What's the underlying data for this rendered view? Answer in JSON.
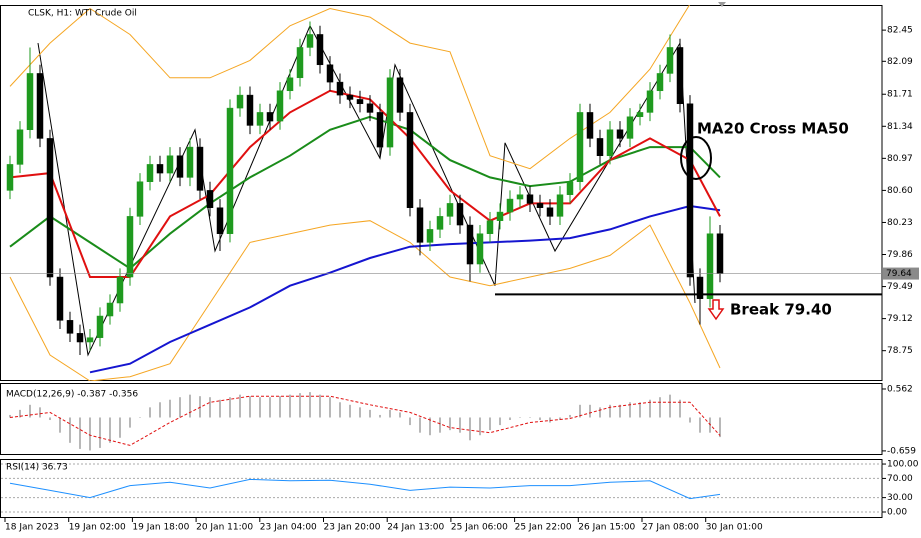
{
  "chart_data": [
    {
      "type": "candlestick",
      "title": "CLSK, H1: WTI Crude Oil",
      "x_labels": [
        "18 Jan 2023",
        "19 Jan 02:00",
        "19 Jan 18:00",
        "20 Jan 11:00",
        "23 Jan 04:00",
        "23 Jan 20:00",
        "24 Jan 13:00",
        "25 Jan 06:00",
        "25 Jan 22:00",
        "26 Jan 15:00",
        "27 Jan 08:00",
        "30 Jan 01:00"
      ],
      "open": [
        80.6,
        80.9,
        81.3,
        81.95,
        81.2,
        79.6,
        79.1,
        78.95,
        78.85,
        78.9,
        79.15,
        79.3,
        79.6,
        80.3,
        80.7,
        80.9,
        80.8,
        81.0,
        80.75,
        81.1,
        80.6,
        80.4,
        80.1,
        81.55,
        81.7,
        81.35,
        81.5,
        81.4,
        81.75,
        81.9,
        82.25,
        82.4,
        82.05,
        81.85,
        81.7,
        81.65,
        81.6,
        81.5,
        81.1,
        81.9,
        81.5,
        80.4,
        80.0,
        80.15,
        80.3,
        80.45,
        80.2,
        79.75,
        80.1,
        80.25,
        80.35,
        80.5,
        80.55,
        80.45,
        80.4,
        80.3,
        80.55,
        80.7,
        81.5,
        81.2,
        81.0,
        81.3,
        81.2,
        81.45,
        81.5,
        81.75,
        81.95,
        82.25,
        81.6,
        79.6,
        79.35,
        80.1
      ],
      "high": [
        81.0,
        81.4,
        82.25,
        82.05,
        81.3,
        79.7,
        79.2,
        79.05,
        79.0,
        79.25,
        79.4,
        79.7,
        80.4,
        80.8,
        81.0,
        81.0,
        81.1,
        81.1,
        81.2,
        81.2,
        80.7,
        80.5,
        81.65,
        81.8,
        81.8,
        81.6,
        81.6,
        81.85,
        82.0,
        82.35,
        82.55,
        82.5,
        82.15,
        81.95,
        81.8,
        81.75,
        81.7,
        81.6,
        82.0,
        82.0,
        81.6,
        80.5,
        80.25,
        80.4,
        80.55,
        80.55,
        80.3,
        80.2,
        80.35,
        80.45,
        80.6,
        80.65,
        80.65,
        80.55,
        80.5,
        80.65,
        80.8,
        81.6,
        81.6,
        81.3,
        81.4,
        81.4,
        81.55,
        81.6,
        81.85,
        82.05,
        82.4,
        82.35,
        81.7,
        79.7,
        80.3,
        80.2
      ],
      "low": [
        80.5,
        80.8,
        81.2,
        81.1,
        79.5,
        79.0,
        78.85,
        78.7,
        78.75,
        78.8,
        79.05,
        79.2,
        79.5,
        80.2,
        80.6,
        80.7,
        80.7,
        80.65,
        80.65,
        80.5,
        80.3,
        79.9,
        80.0,
        81.45,
        81.25,
        81.25,
        81.3,
        81.3,
        81.65,
        81.8,
        82.15,
        81.95,
        81.75,
        81.6,
        81.55,
        81.5,
        81.4,
        80.97,
        81.0,
        81.4,
        80.3,
        79.85,
        79.9,
        80.05,
        80.2,
        80.1,
        79.55,
        79.65,
        80.0,
        80.15,
        80.25,
        80.4,
        80.35,
        80.3,
        80.2,
        80.2,
        80.45,
        80.6,
        81.1,
        80.9,
        80.9,
        81.1,
        81.1,
        81.35,
        81.4,
        81.65,
        81.85,
        81.5,
        79.5,
        79.05,
        79.25,
        79.54
      ],
      "close": [
        80.9,
        81.3,
        81.95,
        81.2,
        79.6,
        79.1,
        78.95,
        78.85,
        78.9,
        79.15,
        79.3,
        79.6,
        80.3,
        80.7,
        80.9,
        80.8,
        81.0,
        80.75,
        81.1,
        80.6,
        80.4,
        80.1,
        81.55,
        81.7,
        81.35,
        81.5,
        81.4,
        81.75,
        81.9,
        82.25,
        82.4,
        82.05,
        81.85,
        81.7,
        81.65,
        81.6,
        81.5,
        81.1,
        81.9,
        81.5,
        80.4,
        80.0,
        80.15,
        80.3,
        80.45,
        80.2,
        79.75,
        80.1,
        80.25,
        80.35,
        80.5,
        80.55,
        80.45,
        80.4,
        80.3,
        80.55,
        80.7,
        81.5,
        81.2,
        81.0,
        81.3,
        81.2,
        81.45,
        81.5,
        81.75,
        81.95,
        82.25,
        81.6,
        79.6,
        79.35,
        80.1,
        79.64
      ],
      "up_color": "#1f9a1f",
      "down_color": "#000000",
      "series": [
        {
          "color": "#000000",
          "x": [
            2.8,
            7.8,
            18.5,
            20.5,
            30,
            37,
            38.5,
            48.5,
            49.5,
            54.5,
            67,
            68.5
          ],
          "values": [
            82.3,
            78.7,
            81.3,
            79.9,
            82.5,
            80.97,
            82.05,
            79.5,
            81.15,
            79.9,
            82.3,
            79.3
          ]
        },
        {
          "color": "#f5a623",
          "x": [
            0,
            4,
            8,
            12,
            16,
            20,
            24,
            28,
            32,
            36,
            40,
            44,
            48,
            52,
            56,
            60,
            64,
            68,
            71
          ],
          "values": [
            81.8,
            82.3,
            82.7,
            82.4,
            81.9,
            81.9,
            82.1,
            82.5,
            82.7,
            82.6,
            82.3,
            82.2,
            81.0,
            80.85,
            81.2,
            81.5,
            82.0,
            82.75,
            82.75
          ]
        },
        {
          "color": "#f5a623",
          "x": [
            0,
            4,
            8,
            12,
            16,
            20,
            24,
            28,
            32,
            36,
            40,
            44,
            48,
            52,
            56,
            60,
            64,
            68,
            71
          ],
          "values": [
            79.6,
            78.7,
            78.4,
            78.45,
            78.6,
            79.3,
            80.0,
            80.1,
            80.2,
            80.25,
            80.0,
            79.6,
            79.5,
            79.6,
            79.7,
            79.85,
            80.2,
            79.3,
            78.55
          ]
        },
        {
          "color": "#1515d0",
          "x": [
            0,
            4,
            8,
            12,
            16,
            20,
            24,
            28,
            32,
            36,
            40,
            44,
            48,
            52,
            56,
            60,
            64,
            68,
            71
          ],
          "values": [
            null,
            null,
            78.5,
            78.6,
            78.85,
            79.05,
            79.25,
            79.5,
            79.65,
            79.82,
            79.95,
            79.98,
            80.0,
            80.02,
            80.05,
            80.15,
            80.3,
            80.42,
            80.37
          ]
        },
        {
          "color": "#1a8c1a",
          "x": [
            0,
            4,
            8,
            12,
            16,
            20,
            24,
            28,
            32,
            36,
            40,
            44,
            48,
            52,
            56,
            60,
            64,
            68,
            71
          ],
          "values": [
            79.95,
            80.3,
            80.0,
            79.7,
            80.1,
            80.45,
            80.75,
            81.0,
            81.3,
            81.45,
            81.3,
            80.95,
            80.75,
            80.65,
            80.7,
            80.95,
            81.1,
            81.1,
            80.75
          ]
        },
        {
          "color": "#e01010",
          "x": [
            0,
            4,
            8,
            12,
            16,
            20,
            24,
            28,
            32,
            36,
            40,
            44,
            48,
            52,
            56,
            60,
            64,
            68,
            71
          ],
          "values": [
            80.75,
            80.8,
            79.6,
            79.6,
            80.3,
            80.55,
            81.1,
            81.5,
            81.75,
            81.65,
            81.2,
            80.6,
            80.25,
            80.45,
            80.45,
            80.95,
            81.2,
            80.95,
            80.3
          ]
        }
      ],
      "last_price": 79.64,
      "break_line": {
        "value": 79.4,
        "from_x": 48.5
      },
      "annotation_cross": "MA20 Cross MA50",
      "annotation_break": "Break 79.40",
      "ylim": [
        78.4,
        82.74
      ],
      "yticks": [
        82.45,
        82.09,
        81.71,
        81.34,
        80.97,
        {
          "value": 80.6,
          "label": "80.60"
        },
        80.23,
        79.86,
        79.49,
        79.12,
        78.75
      ]
    },
    {
      "type": "macd",
      "title": "MACD(12,26,9) -0.387 -0.356",
      "color": "#b8b8b8",
      "values": [
        0.05,
        0.15,
        0.25,
        0.2,
        -0.05,
        -0.3,
        -0.5,
        -0.62,
        -0.65,
        -0.6,
        -0.5,
        -0.4,
        -0.2,
        0.0,
        0.2,
        0.3,
        0.35,
        0.4,
        0.45,
        0.42,
        0.4,
        0.35,
        0.4,
        0.45,
        0.42,
        0.4,
        0.4,
        0.42,
        0.45,
        0.48,
        0.5,
        0.45,
        0.4,
        0.3,
        0.25,
        0.2,
        0.15,
        0.05,
        0.15,
        0.1,
        -0.15,
        -0.3,
        -0.35,
        -0.3,
        -0.25,
        -0.3,
        -0.45,
        -0.35,
        -0.25,
        -0.15,
        -0.05,
        0.0,
        0.0,
        -0.05,
        -0.1,
        -0.05,
        0.05,
        0.25,
        0.25,
        0.2,
        0.25,
        0.25,
        0.3,
        0.3,
        0.35,
        0.4,
        0.45,
        0.35,
        -0.1,
        -0.3,
        -0.3,
        -0.387
      ],
      "series": [
        {
          "color": "#e01010",
          "dashed": true,
          "x": [
            0,
            4,
            8,
            12,
            16,
            20,
            24,
            28,
            32,
            36,
            40,
            44,
            48,
            52,
            56,
            60,
            64,
            68,
            71
          ],
          "values": [
            0.0,
            0.1,
            -0.35,
            -0.55,
            -0.1,
            0.3,
            0.42,
            0.42,
            0.42,
            0.25,
            0.1,
            -0.2,
            -0.3,
            -0.1,
            -0.02,
            0.2,
            0.3,
            0.3,
            -0.356
          ]
        }
      ],
      "ylim": [
        -0.74,
        0.68
      ],
      "yticks": [
        0.562,
        -0.659
      ]
    },
    {
      "type": "line",
      "title": "RSI(14) 36.73",
      "grid": true,
      "series": [
        {
          "color": "#1e90ff",
          "x": [
            0,
            4,
            8,
            12,
            16,
            20,
            24,
            28,
            32,
            36,
            40,
            44,
            48,
            52,
            56,
            60,
            64,
            68,
            71
          ],
          "values": [
            60,
            45,
            30,
            55,
            62,
            50,
            68,
            65,
            66,
            58,
            45,
            52,
            50,
            55,
            55,
            62,
            65,
            28,
            36.73
          ]
        }
      ],
      "ylim": [
        -12.5,
        110.5
      ],
      "yticks": [
        {
          "value": 100,
          "label": "100.00"
        },
        {
          "value": 70,
          "label": "70.00"
        },
        {
          "value": 30,
          "label": "30.00"
        },
        {
          "value": 0,
          "label": "0.00"
        }
      ]
    }
  ]
}
